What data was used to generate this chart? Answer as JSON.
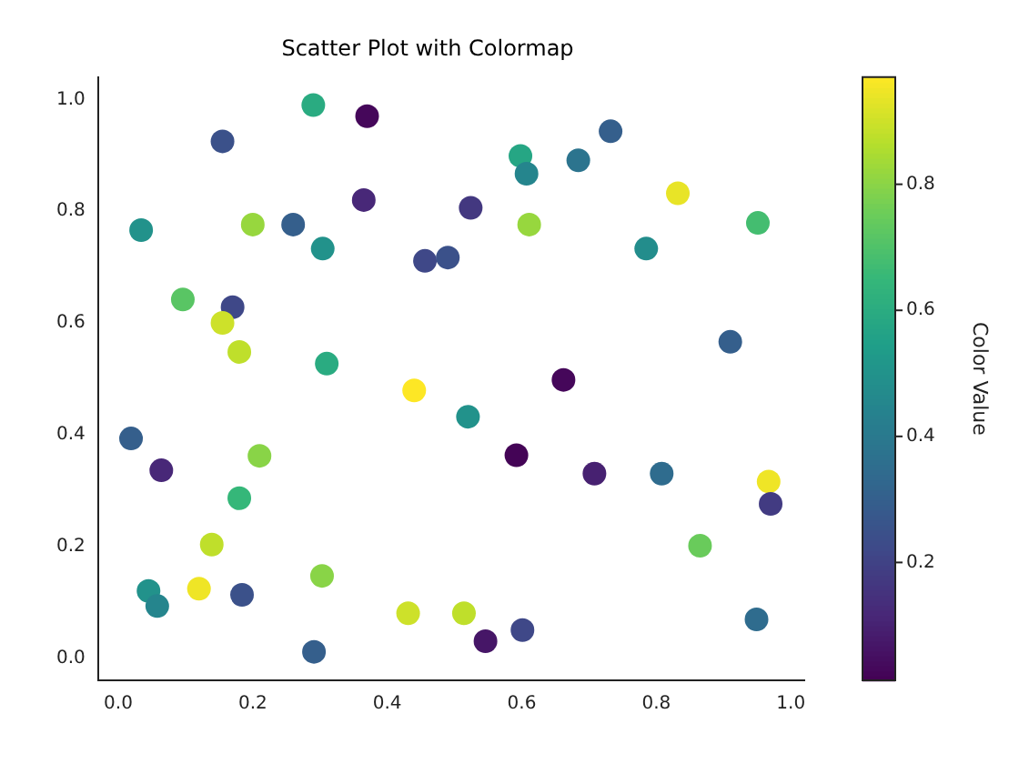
{
  "chart_data": {
    "type": "scatter",
    "title": "Scatter Plot with Colormap",
    "clabel": "Color Value",
    "x": [
      0.29,
      0.37,
      0.155,
      0.365,
      0.034,
      0.2,
      0.26,
      0.304,
      0.456,
      0.49,
      0.096,
      0.17,
      0.155,
      0.18,
      0.31,
      0.44,
      0.732,
      0.598,
      0.684,
      0.607,
      0.832,
      0.524,
      0.611,
      0.951,
      0.785,
      0.91,
      0.662,
      0.019,
      0.064,
      0.21,
      0.18,
      0.139,
      0.045,
      0.058,
      0.12,
      0.184,
      0.303,
      0.291,
      0.431,
      0.514,
      0.52,
      0.592,
      0.708,
      0.808,
      0.967,
      0.97,
      0.865,
      0.546,
      0.601,
      0.949
    ],
    "values": [
      0.99,
      0.97,
      0.925,
      0.82,
      0.766,
      0.776,
      0.776,
      0.733,
      0.711,
      0.717,
      0.642,
      0.628,
      0.6,
      0.548,
      0.527,
      0.479,
      0.943,
      0.899,
      0.891,
      0.867,
      0.832,
      0.806,
      0.776,
      0.779,
      0.733,
      0.566,
      0.498,
      0.393,
      0.336,
      0.362,
      0.286,
      0.203,
      0.12,
      0.093,
      0.124,
      0.113,
      0.147,
      0.011,
      0.08,
      0.08,
      0.432,
      0.363,
      0.33,
      0.33,
      0.316,
      0.276,
      0.201,
      0.03,
      0.05,
      0.069
    ],
    "cvalues": [
      0.6,
      0.03,
      0.25,
      0.12,
      0.5,
      0.82,
      0.3,
      0.5,
      0.22,
      0.25,
      0.72,
      0.22,
      0.9,
      0.88,
      0.6,
      0.97,
      0.3,
      0.58,
      0.38,
      0.45,
      0.94,
      0.17,
      0.82,
      0.68,
      0.48,
      0.3,
      0.03,
      0.3,
      0.12,
      0.8,
      0.65,
      0.88,
      0.5,
      0.45,
      0.95,
      0.25,
      0.8,
      0.3,
      0.9,
      0.88,
      0.5,
      0.02,
      0.1,
      0.35,
      0.95,
      0.18,
      0.75,
      0.07,
      0.22,
      0.35
    ],
    "xlim": [
      -0.03,
      1.02
    ],
    "ylim": [
      -0.04,
      1.04
    ],
    "xticks": [
      {
        "value": 0,
        "label": "0.0"
      },
      {
        "value": 0.2,
        "label": "0.2"
      },
      {
        "value": 0.4,
        "label": "0.4"
      },
      {
        "value": 0.6,
        "label": "0.6"
      },
      {
        "value": 0.8,
        "label": "0.8"
      },
      {
        "value": 1,
        "label": "1.0"
      }
    ],
    "yticks": [
      {
        "value": 0,
        "label": "0.0"
      },
      {
        "value": 0.2,
        "label": "0.2"
      },
      {
        "value": 0.4,
        "label": "0.4"
      },
      {
        "value": 0.6,
        "label": "0.6"
      },
      {
        "value": 0.8,
        "label": "0.8"
      },
      {
        "value": 1,
        "label": "1.0"
      }
    ],
    "clim": [
      0.013,
      0.97
    ],
    "cticks": [
      0.2,
      0.4,
      0.6,
      0.8
    ],
    "grid": false,
    "legend": false,
    "marker": "circle"
  }
}
